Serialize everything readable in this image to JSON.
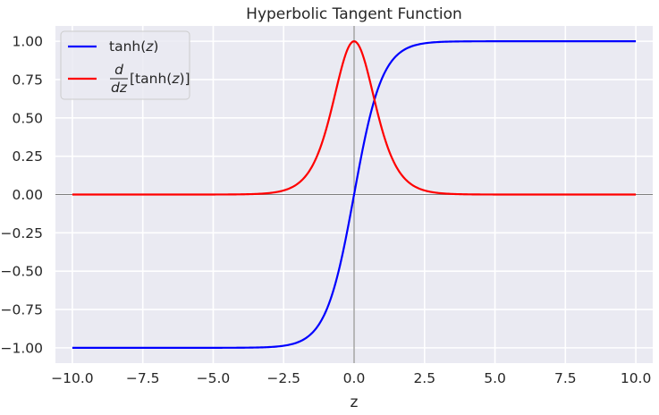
{
  "chart_data": {
    "type": "line",
    "title": "Hyperbolic Tangent Function",
    "xlabel": "z",
    "ylabel": "",
    "xlim": [
      -10.6,
      10.6
    ],
    "ylim": [
      -1.1,
      1.1
    ],
    "x_ticks": [
      -10.0,
      -7.5,
      -5.0,
      -2.5,
      0.0,
      2.5,
      5.0,
      7.5,
      10.0
    ],
    "x_tick_labels": [
      "−10.0",
      "−7.5",
      "−5.0",
      "−2.5",
      "0.0",
      "2.5",
      "5.0",
      "7.5",
      "10.0"
    ],
    "y_ticks": [
      1.0,
      0.75,
      0.5,
      0.25,
      0.0,
      -0.25,
      -0.5,
      -0.75,
      -1.0
    ],
    "y_tick_labels": [
      "1.00",
      "0.75",
      "0.50",
      "0.25",
      "0.00",
      "−0.25",
      "−0.50",
      "−0.75",
      "−1.00"
    ],
    "grid": true,
    "background": "#eaeaf2",
    "grid_color": "#ffffff",
    "legend_position": "top-left",
    "reference_lines": {
      "horizontal_at_y": 0,
      "vertical_at_x": 0,
      "color": "#555555"
    },
    "series": [
      {
        "name": "tanh(z)",
        "legend": {
          "prefix": "tanh(",
          "var": "z",
          "suffix": ")"
        },
        "color": "#0000ff",
        "function": "tanh",
        "x_range": [
          -10,
          10
        ],
        "sample_points": [
          [
            -10,
            -1.0
          ],
          [
            -5,
            -0.9999
          ],
          [
            -2.5,
            -0.9866
          ],
          [
            -1,
            -0.7616
          ],
          [
            0,
            0.0
          ],
          [
            1,
            0.7616
          ],
          [
            2.5,
            0.9866
          ],
          [
            5,
            0.9999
          ],
          [
            10,
            1.0
          ]
        ]
      },
      {
        "name": "d/dz[tanh(z)]",
        "legend": {
          "num": "d",
          "den": "dz",
          "prefix": "[tanh(",
          "var": "z",
          "suffix": ")]"
        },
        "color": "#ff0000",
        "function": "sech^2",
        "x_range": [
          -10,
          10
        ],
        "sample_points": [
          [
            -10,
            0.0
          ],
          [
            -5,
            0.0002
          ],
          [
            -2.5,
            0.0266
          ],
          [
            -1,
            0.42
          ],
          [
            0,
            1.0
          ],
          [
            1,
            0.42
          ],
          [
            2.5,
            0.0266
          ],
          [
            5,
            0.0002
          ],
          [
            10,
            0.0
          ]
        ]
      }
    ]
  }
}
